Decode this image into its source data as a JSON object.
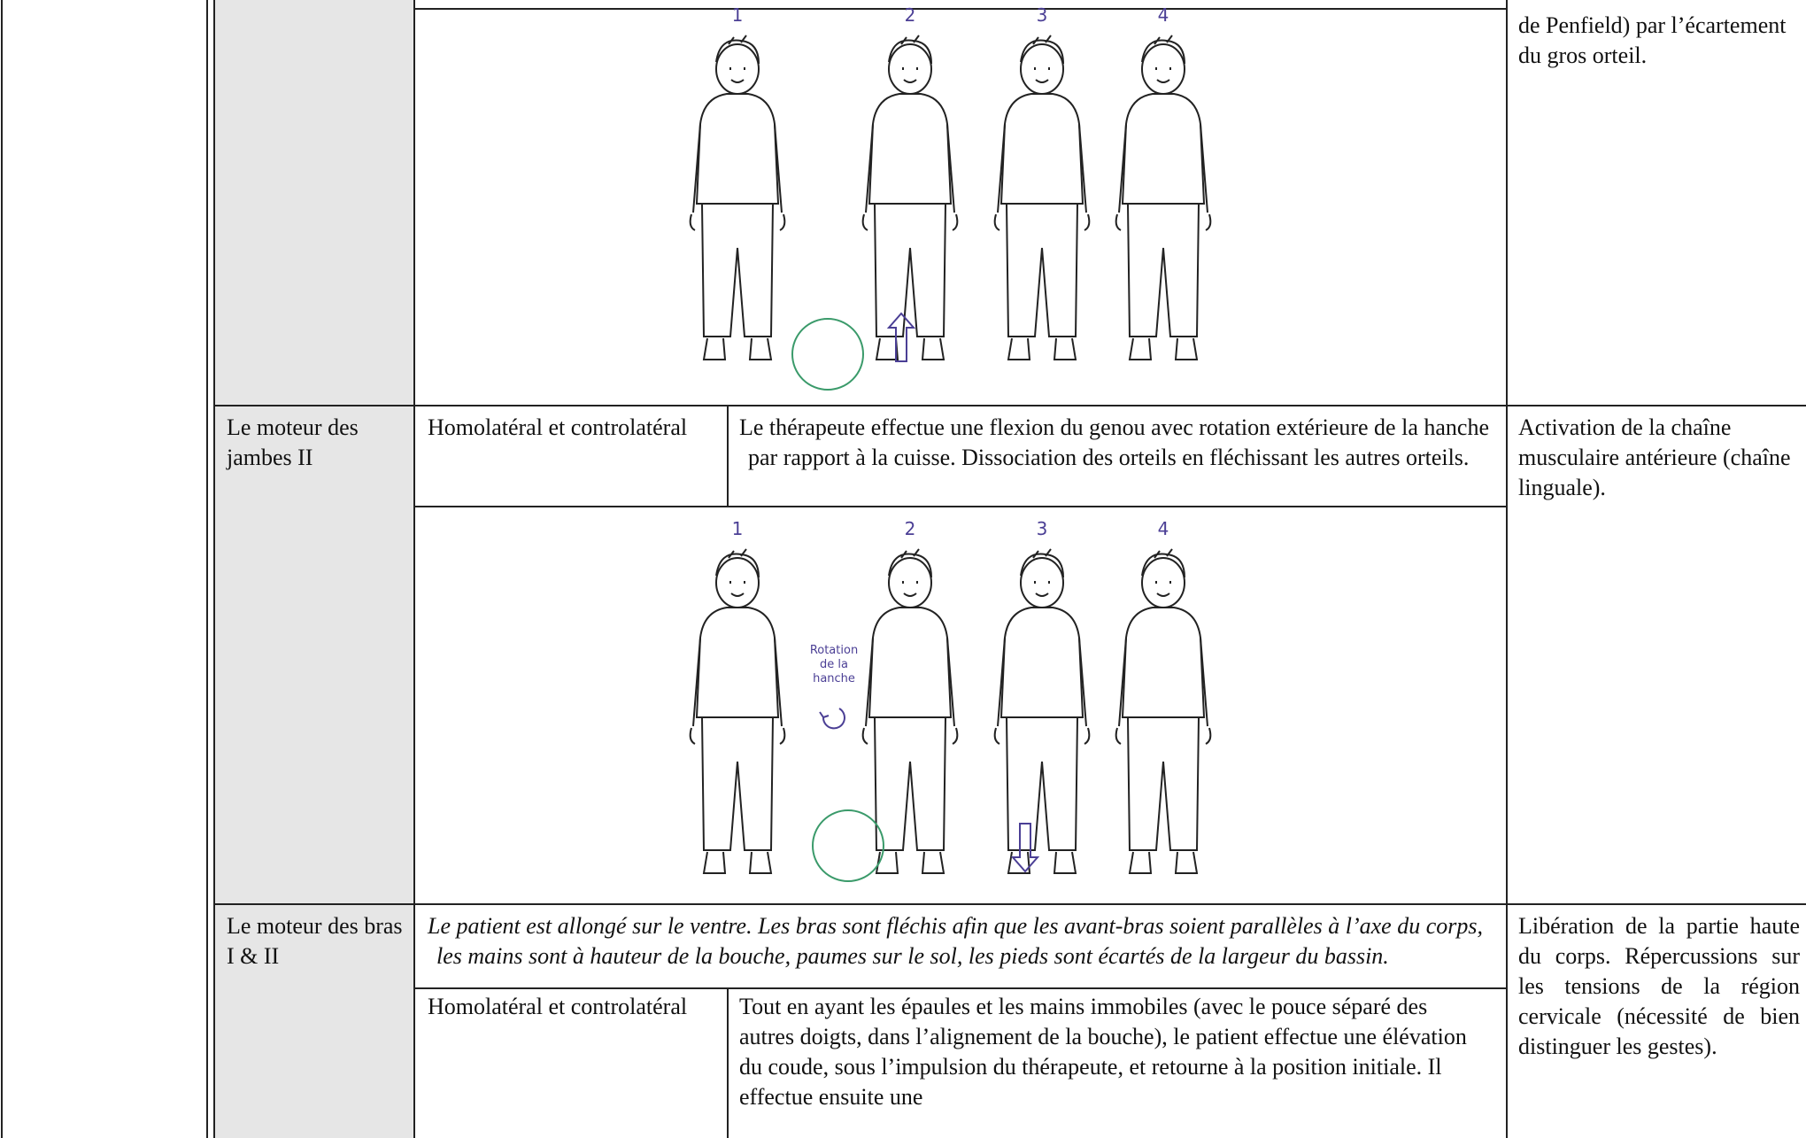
{
  "table": {
    "rows": [
      {
        "figure_labels": [
          "1",
          "2",
          "3",
          "4"
        ],
        "effect": "de Penfield) par l’écartement du gros orteil."
      },
      {
        "name": "Le moteur des jambes II",
        "side": "Homolatéral et controlatéral",
        "description": "Le thérapeute effectue une flexion du genou avec rotation extérieure de la hanche par rapport à la cuisse. Dissociation des orteils en fléchissant les autres orteils.",
        "effect": "Activation de la chaîne musculaire antérieure (chaîne linguale).",
        "figure_labels": [
          "1",
          "2",
          "3",
          "4"
        ],
        "annotation": "Rotation de la hanche"
      },
      {
        "name": "Le moteur des bras I & II",
        "intro": "Le patient est allongé sur le ventre. Les bras sont fléchis afin que les avant-bras soient parallèles à l’axe du corps, les mains sont à hauteur de la bouche, paumes sur le sol, les pieds sont écartés de la largeur du bassin.",
        "side": "Homolatéral et controlatéral",
        "description": "Tout en ayant les épaules et les mains immobiles (avec le pouce séparé des autres doigts, dans l’alignement de la bouche), le patient effectue une élévation du coude, sous l’impulsion du thérapeute, et retourne à la position initiale. Il effectue ensuite une",
        "effect": "Libération de la partie haute du corps. Répercussions sur les tensions de la région cervicale (nécessité de bien distinguer les gestes)."
      }
    ]
  }
}
